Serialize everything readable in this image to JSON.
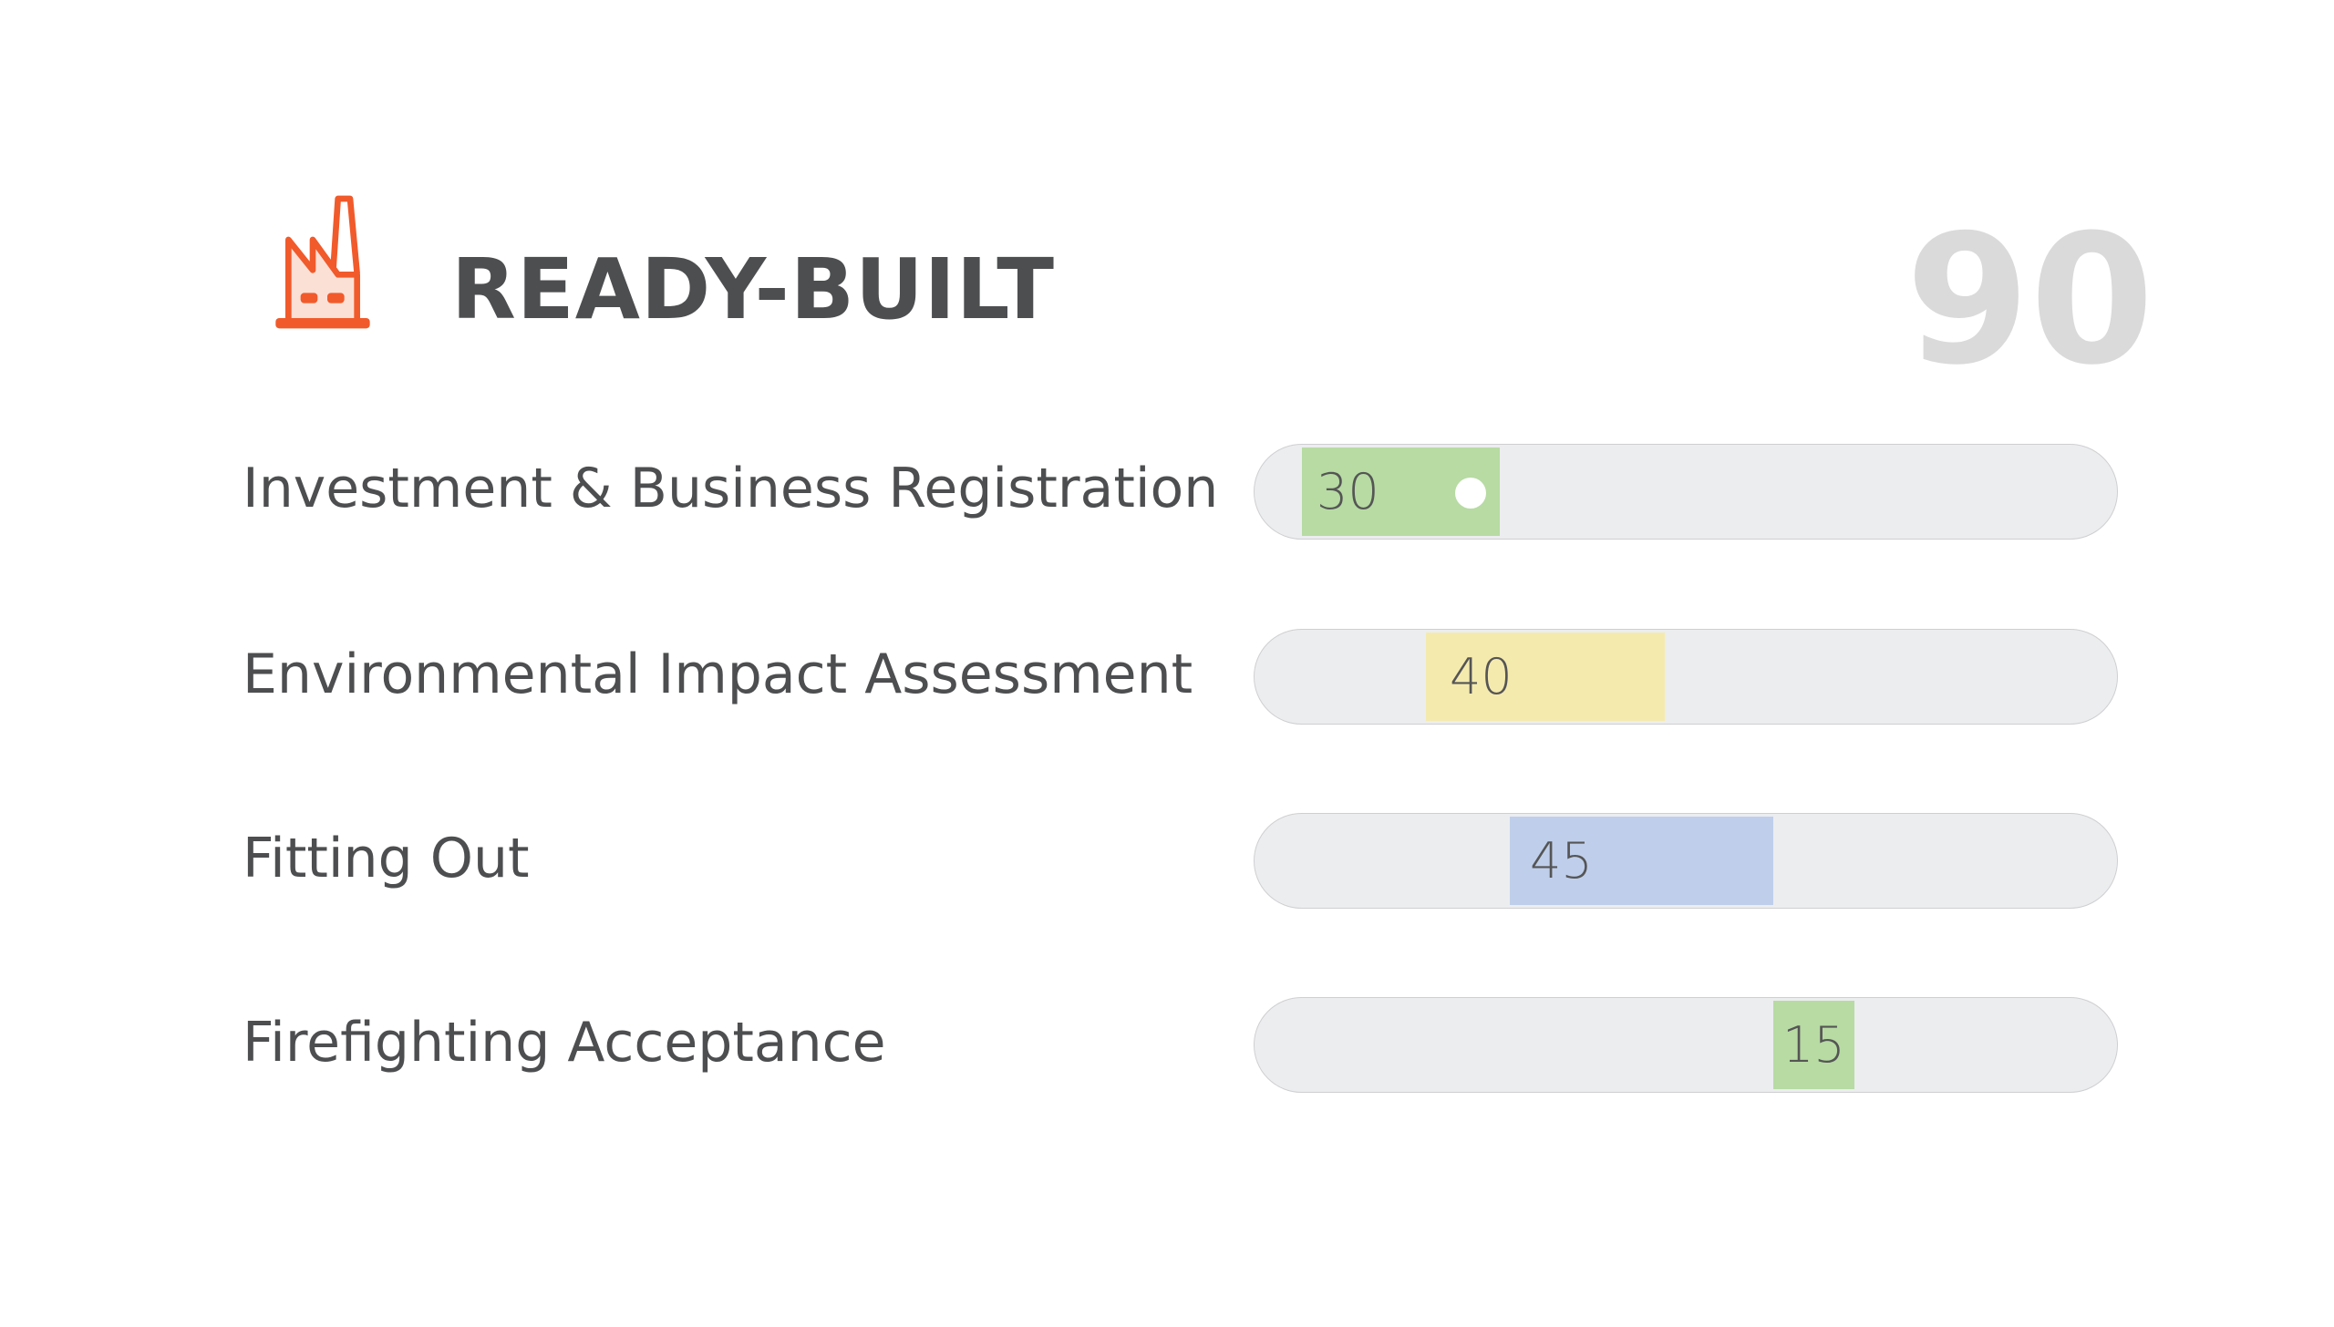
{
  "header": {
    "title": "READY-BUILT",
    "total": "90",
    "icon": "factory-icon",
    "icon_color": "#f15a2b"
  },
  "rows": [
    {
      "label": "Investment & Business Registration",
      "value": "30",
      "color": "#b7dba3"
    },
    {
      "label": "Environmental Impact Assessment",
      "value": "40",
      "color": "#f5eaae"
    },
    {
      "label": "Fitting Out",
      "value": "45",
      "color": "#bfcfeb"
    },
    {
      "label": "Firefighting Acceptance",
      "value": "15",
      "color": "#b7dba3"
    }
  ]
}
